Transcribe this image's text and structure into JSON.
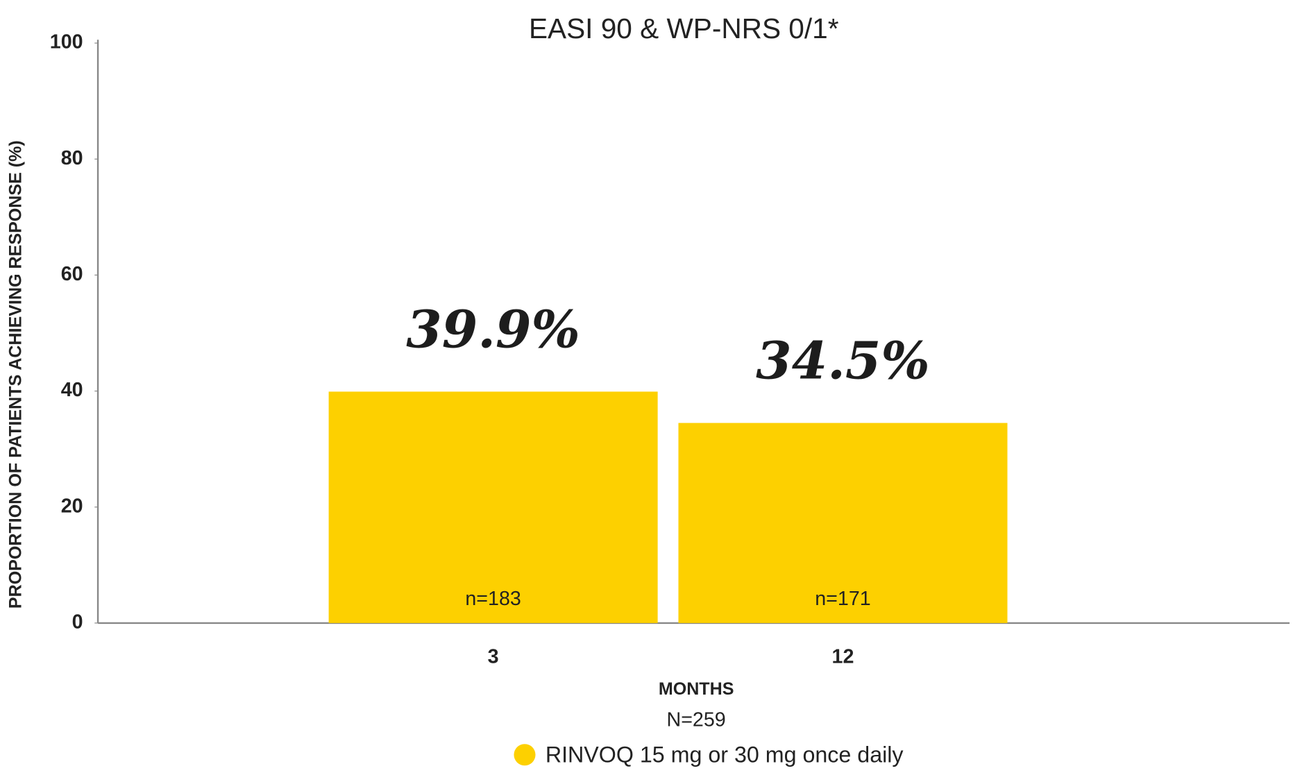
{
  "chart_data": {
    "type": "bar",
    "title": "EASI 90 & WP-NRS 0/1*",
    "y_label": "PROPORTION OF PATIENTS ACHIEVING RESPONSE (%)",
    "x_label": "MONTHS",
    "subtitle": "N=259",
    "categories": [
      "3",
      "12"
    ],
    "series": [
      {
        "name": "RINVOQ 15 mg or 30 mg once daily",
        "color": "#fdd000",
        "values": [
          39.9,
          34.5
        ],
        "value_labels": [
          "39.9%",
          "34.5%"
        ],
        "annotations": [
          "n=183",
          "n=171"
        ]
      }
    ],
    "ylim": [
      0,
      100
    ],
    "yticks": [
      0,
      20,
      40,
      60,
      80,
      100
    ],
    "grid": false
  }
}
